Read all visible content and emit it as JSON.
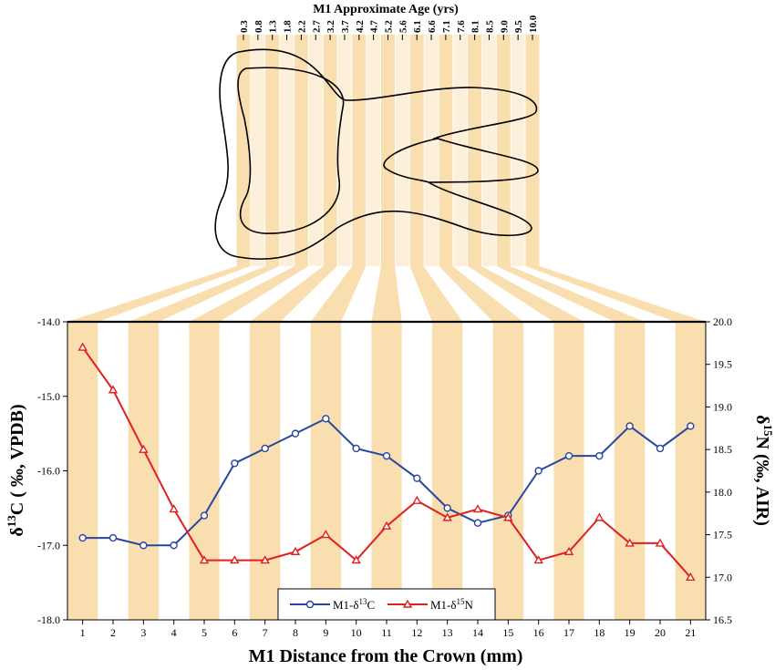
{
  "chart_data": {
    "type": "line",
    "top_title": "M1 Approximate Age (yrs)",
    "age_ticks": [
      "0.3",
      "0.8",
      "1.3",
      "1.8",
      "2.2",
      "2.7",
      "3.2",
      "3.7",
      "4.2",
      "4.7",
      "5.2",
      "5.6",
      "6.1",
      "6.6",
      "7.1",
      "7.6",
      "8.1",
      "8.5",
      "9.0",
      "9.5",
      "10.0"
    ],
    "xlabel": "M1 Distance from the Crown (mm)",
    "ylabel_left": {
      "prefix": "δ",
      "sup": "13",
      "suffix": "C ( ‰, VPDB)"
    },
    "ylabel_right": {
      "prefix": "δ",
      "sup": "15",
      "suffix": "N (‰, AIR)"
    },
    "x": [
      1,
      2,
      3,
      4,
      5,
      6,
      7,
      8,
      9,
      10,
      11,
      12,
      13,
      14,
      15,
      16,
      17,
      18,
      19,
      20,
      21
    ],
    "ylim_left": [
      -18.0,
      -14.0
    ],
    "ylim_right": [
      16.5,
      20.0
    ],
    "yticks_left": [
      "-18.0",
      "-17.0",
      "-16.0",
      "-15.0",
      "-14.0"
    ],
    "yticks_right": [
      "16.5",
      "17.0",
      "17.5",
      "18.0",
      "18.5",
      "19.0",
      "19.5",
      "20.0"
    ],
    "series": [
      {
        "name": {
          "prefix": "M1-δ",
          "sup": "13",
          "suffix": "C"
        },
        "axis": "left",
        "color": "#2846a0",
        "marker": "circle",
        "values": [
          -16.9,
          -16.9,
          -17.0,
          -17.0,
          -16.6,
          -15.9,
          -15.7,
          -15.5,
          -15.3,
          -15.7,
          -15.8,
          -16.1,
          -16.5,
          -16.7,
          -16.6,
          -16.0,
          -15.8,
          -15.8,
          -15.4,
          -15.7,
          -15.4
        ]
      },
      {
        "name": {
          "prefix": "M1-δ",
          "sup": "15",
          "suffix": "N"
        },
        "axis": "right",
        "color": "#e02020",
        "marker": "triangle",
        "values": [
          19.7,
          19.2,
          18.5,
          17.8,
          17.2,
          17.2,
          17.2,
          17.3,
          17.5,
          17.2,
          17.6,
          17.9,
          17.7,
          17.8,
          17.7,
          17.2,
          17.3,
          17.7,
          17.4,
          17.4,
          17.0
        ]
      }
    ],
    "band_color": "#f9deb0",
    "legend": "bottom-center"
  }
}
